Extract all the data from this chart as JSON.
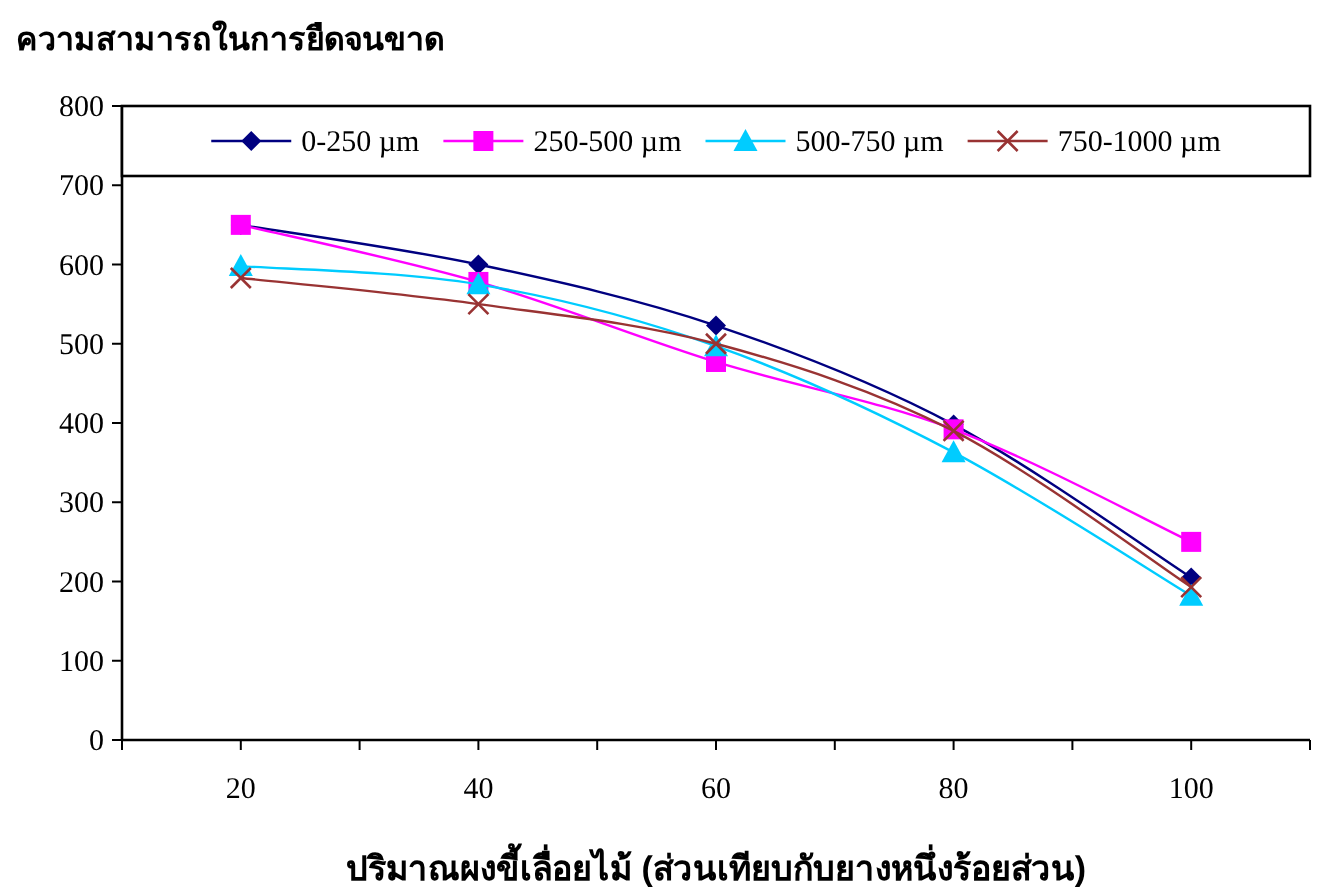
{
  "chart_data": {
    "type": "line",
    "title": "ความสามารถในการยืดจนขาด",
    "xlabel": "ปริมาณผงขี้เลื่อยไม้ (ส่วนเทียบกับยางหนึ่งร้อยส่วน)",
    "x": [
      20,
      40,
      60,
      80,
      100
    ],
    "xlim": [
      10,
      110
    ],
    "xticks": [
      {
        "value": 10,
        "label": null
      },
      20,
      {
        "value": 30,
        "label": null
      },
      40,
      {
        "value": 50,
        "label": null
      },
      60,
      {
        "value": 70,
        "label": null
      },
      80,
      {
        "value": 90,
        "label": null
      },
      100,
      {
        "value": 110,
        "label": null
      }
    ],
    "ylim": [
      0,
      800
    ],
    "yticks": [
      0,
      100,
      200,
      300,
      400,
      500,
      600,
      700,
      800
    ],
    "grid": false,
    "legend": "top",
    "series": [
      {
        "name": "0-250 µm",
        "color": "#000080",
        "marker": "diamond",
        "values": [
          650,
          600,
          523,
          398,
          205
        ]
      },
      {
        "name": "250-500 µm",
        "color": "#ff00ff",
        "marker": "square",
        "values": [
          650,
          578,
          477,
          392,
          250
        ]
      },
      {
        "name": "500-750 µm",
        "color": "#00ccff",
        "marker": "triangle",
        "values": [
          598,
          575,
          497,
          363,
          182
        ]
      },
      {
        "name": "750-1000 µm",
        "color": "#993333",
        "marker": "cross",
        "values": [
          583,
          550,
          500,
          390,
          193
        ]
      }
    ]
  }
}
